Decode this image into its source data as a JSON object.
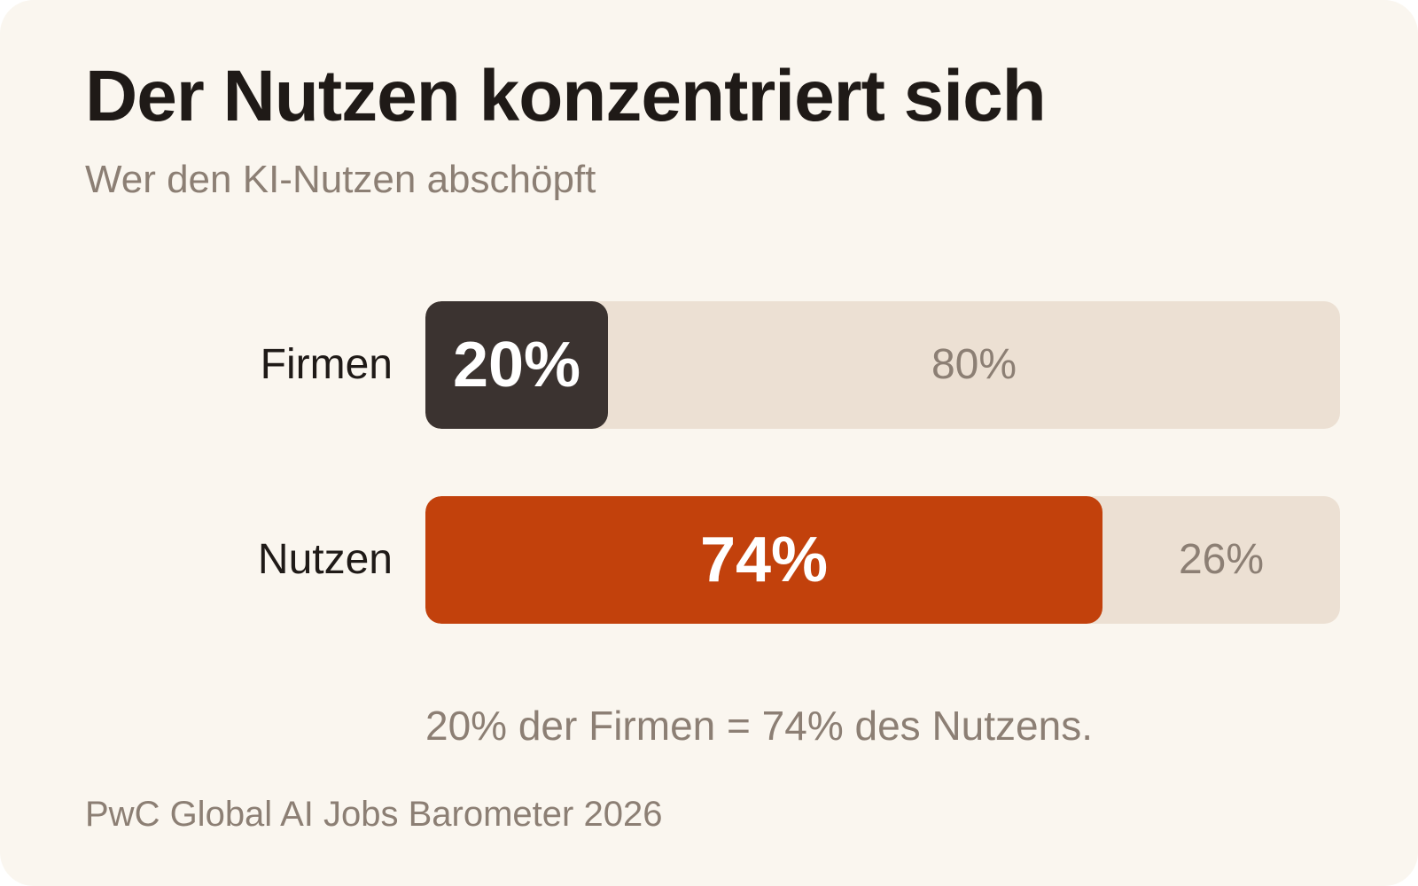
{
  "colors": {
    "background": "#faf6ef",
    "firmen_fill": "#3b3330",
    "nutzen_fill": "#c2410c",
    "track": "#ece0d3",
    "muted_text": "#8c7f74"
  },
  "chart_data": {
    "type": "bar",
    "orientation": "horizontal",
    "stacked": true,
    "title": "Der Nutzen konzentriert sich",
    "subtitle": "Wer den KI-Nutzen abschöpft",
    "categories": [
      "Firmen",
      "Nutzen"
    ],
    "series": [
      {
        "values": [
          20,
          74
        ]
      },
      {
        "values": [
          80,
          26
        ]
      }
    ],
    "value_labels": [
      {
        "highlight": "20%",
        "rest": "80%"
      },
      {
        "highlight": "74%",
        "rest": "26%"
      }
    ],
    "xlim": [
      0,
      100
    ],
    "grid": false,
    "annotation": "20% der Firmen = 74% des Nutzens.",
    "source": "PwC Global AI Jobs Barometer 2026"
  }
}
